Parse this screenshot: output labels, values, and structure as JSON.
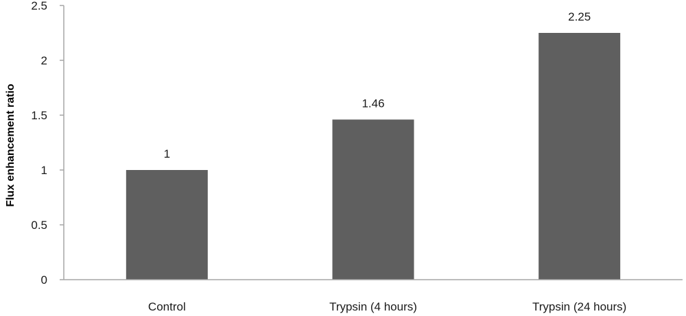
{
  "chart_data": {
    "type": "bar",
    "title": "",
    "xlabel": "",
    "ylabel": "Flux enhancement ratio",
    "categories": [
      "Control",
      "Trypsin (4 hours)",
      "Trypsin (24 hours)"
    ],
    "values": [
      1,
      1.46,
      2.25
    ],
    "data_labels": [
      "1",
      "1.46",
      "2.25"
    ],
    "ylim": [
      0,
      2.5
    ],
    "yticks": [
      0,
      0.5,
      1,
      1.5,
      2,
      2.5
    ],
    "ytick_labels": [
      "0",
      "0.5",
      "1",
      "1.5",
      "2",
      "2.5"
    ],
    "grid": false,
    "legend": "none",
    "bar_color": "#5f5f5f",
    "axis_color": "#a6a6a6"
  }
}
